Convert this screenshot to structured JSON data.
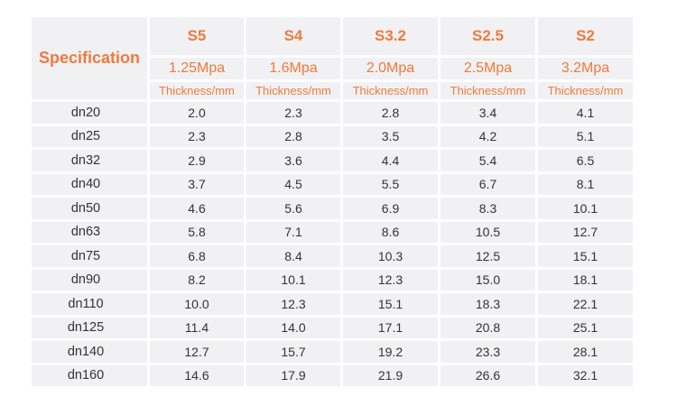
{
  "header": {
    "spec_label": "Specification",
    "columns": [
      {
        "series": "S5",
        "pressure": "1.25Mpa",
        "unit": "Thickness/mm"
      },
      {
        "series": "S4",
        "pressure": "1.6Mpa",
        "unit": "Thickness/mm"
      },
      {
        "series": "S3.2",
        "pressure": "2.0Mpa",
        "unit": "Thickness/mm"
      },
      {
        "series": "S2.5",
        "pressure": "2.5Mpa",
        "unit": "Thickness/mm"
      },
      {
        "series": "S2",
        "pressure": "3.2Mpa",
        "unit": "Thickness/mm"
      }
    ]
  },
  "rows": [
    {
      "spec": "dn20",
      "values": [
        "2.0",
        "2.3",
        "2.8",
        "3.4",
        "4.1"
      ]
    },
    {
      "spec": "dn25",
      "values": [
        "2.3",
        "2.8",
        "3.5",
        "4.2",
        "5.1"
      ]
    },
    {
      "spec": "dn32",
      "values": [
        "2.9",
        "3.6",
        "4.4",
        "5.4",
        "6.5"
      ]
    },
    {
      "spec": "dn40",
      "values": [
        "3.7",
        "4.5",
        "5.5",
        "6.7",
        "8.1"
      ]
    },
    {
      "spec": "dn50",
      "values": [
        "4.6",
        "5.6",
        "6.9",
        "8.3",
        "10.1"
      ]
    },
    {
      "spec": "dn63",
      "values": [
        "5.8",
        "7.1",
        "8.6",
        "10.5",
        "12.7"
      ]
    },
    {
      "spec": "dn75",
      "values": [
        "6.8",
        "8.4",
        "10.3",
        "12.5",
        "15.1"
      ]
    },
    {
      "spec": "dn90",
      "values": [
        "8.2",
        "10.1",
        "12.3",
        "15.0",
        "18.1"
      ]
    },
    {
      "spec": "dn110",
      "values": [
        "10.0",
        "12.3",
        "15.1",
        "18.3",
        "22.1"
      ]
    },
    {
      "spec": "dn125",
      "values": [
        "11.4",
        "14.0",
        "17.1",
        "20.8",
        "25.1"
      ]
    },
    {
      "spec": "dn140",
      "values": [
        "12.7",
        "15.7",
        "19.2",
        "23.3",
        "28.1"
      ]
    },
    {
      "spec": "dn160",
      "values": [
        "14.6",
        "17.9",
        "21.9",
        "26.6",
        "32.1"
      ]
    }
  ],
  "colors": {
    "accent": "#ef7a3c",
    "cell_background": "#f1f1f3",
    "text": "#333333"
  }
}
